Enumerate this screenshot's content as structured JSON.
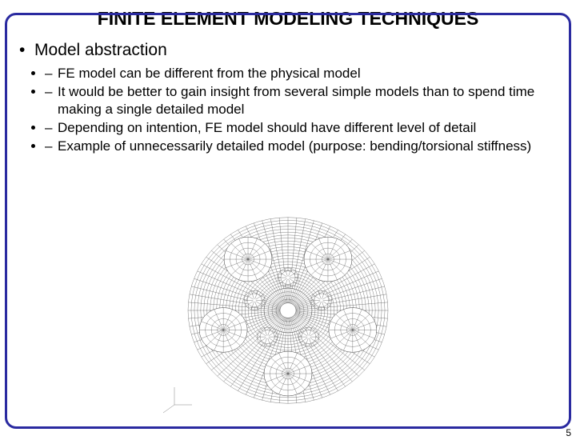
{
  "title": "FINITE ELEMENT MODELING TECHNIQUES",
  "title_fontsize": 23,
  "title_color": "#000000",
  "frame_border_color": "#2a2aa0",
  "main_bullet": "Model abstraction",
  "bullet_glyph": "•",
  "sub_items": [
    "FE model can be different from the physical model",
    "It would be better to gain insight from several simple models than to spend time making a single detailed model",
    "Depending on intention, FE model should have different level of detail",
    "Example of unnecessarily detailed model (purpose: bending/torsional stiffness)"
  ],
  "page_number": "5",
  "figure": {
    "type": "infographic",
    "description": "wireframe FE mesh of a automotive wheel hub / hubcap with bolt holes and spoke cutouts",
    "stroke_color": "#4a4a4a",
    "stroke_width": 0.35,
    "background_color": "#ffffff",
    "outer_radius": 125,
    "inner_hub_radius": 30,
    "bolt_circle_radius": 44,
    "bolt_hole_radius": 9,
    "bolt_count": 5,
    "spoke_hole_count": 5,
    "spoke_hole_radius": 30,
    "spoke_hole_orbit": 85,
    "radial_lines": 72,
    "ring_lines": 24
  }
}
